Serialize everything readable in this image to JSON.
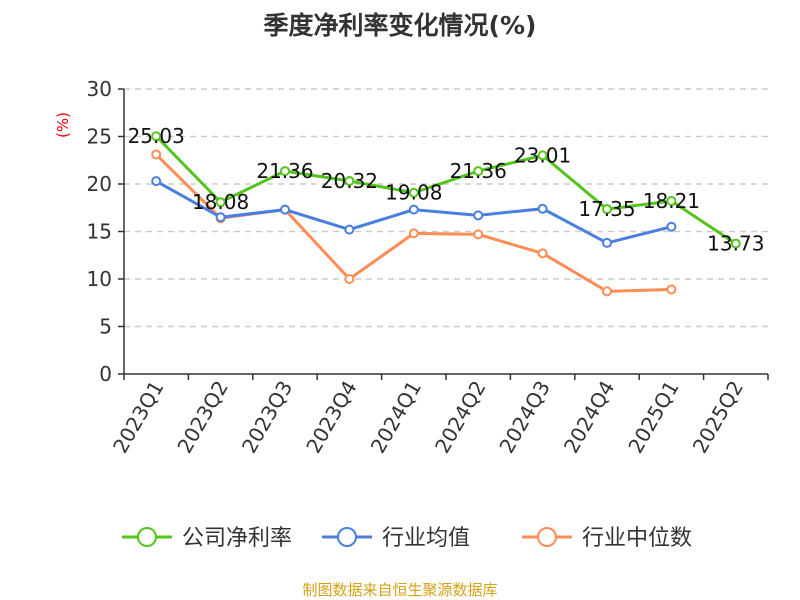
{
  "chart_data": {
    "type": "line",
    "title": "季度净利率变化情况(%)",
    "ylabel": "(%)",
    "ylim": [
      0,
      30
    ],
    "yticks": [
      0,
      5,
      10,
      15,
      20,
      25,
      30
    ],
    "grid": true,
    "legend_placement": "bottom",
    "categories": [
      "2023Q1",
      "2023Q2",
      "2023Q3",
      "2023Q4",
      "2024Q1",
      "2024Q2",
      "2024Q3",
      "2024Q4",
      "2025Q1",
      "2025Q2"
    ],
    "series": [
      {
        "name": "公司净利率",
        "color": "#52c41a",
        "labels": true,
        "values": [
          25.03,
          18.08,
          21.36,
          20.32,
          19.08,
          21.36,
          23.01,
          17.35,
          18.21,
          13.73
        ]
      },
      {
        "name": "行业均值",
        "color": "#4a7fe0",
        "labels": false,
        "values": [
          20.3,
          16.5,
          17.3,
          15.2,
          17.3,
          16.7,
          17.4,
          13.8,
          15.5,
          null
        ]
      },
      {
        "name": "行业中位数",
        "color": "#ff8c55",
        "labels": false,
        "values": [
          23.1,
          16.4,
          17.3,
          10.0,
          14.8,
          14.7,
          12.7,
          8.7,
          8.9,
          null
        ]
      }
    ]
  },
  "source": "制图数据来自恒生聚源数据库"
}
